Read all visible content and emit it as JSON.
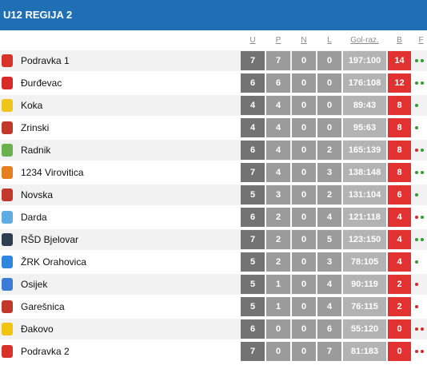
{
  "title": "U12 REGIJA 2",
  "columns": {
    "u": "U",
    "p": "P",
    "n": "N",
    "l": "L",
    "gol": "Gol-raz.",
    "b": "B",
    "f": "F"
  },
  "colors": {
    "header": "#1f6fb4",
    "points": "#e23131",
    "win": "#2a9d2a",
    "loss": "#d62626"
  },
  "rows": [
    {
      "team": "Podravka 1",
      "u": "7",
      "p": "7",
      "n": "0",
      "l": "0",
      "gol": "197:100",
      "b": "14",
      "form": [
        "w",
        "w"
      ],
      "logo": "#d8322b"
    },
    {
      "team": "Đurđevac",
      "u": "6",
      "p": "6",
      "n": "0",
      "l": "0",
      "gol": "176:108",
      "b": "12",
      "form": [
        "w",
        "w"
      ],
      "logo": "#d82a2a"
    },
    {
      "team": "Koka",
      "u": "4",
      "p": "4",
      "n": "0",
      "l": "0",
      "gol": "89:43",
      "b": "8",
      "form": [
        "w"
      ],
      "logo": "#f0c419"
    },
    {
      "team": "Zrinski",
      "u": "4",
      "p": "4",
      "n": "0",
      "l": "0",
      "gol": "95:63",
      "b": "8",
      "form": [
        "w"
      ],
      "logo": "#c0392b"
    },
    {
      "team": "Radnik",
      "u": "6",
      "p": "4",
      "n": "0",
      "l": "2",
      "gol": "165:139",
      "b": "8",
      "form": [
        "l",
        "w"
      ],
      "logo": "#6ab04c"
    },
    {
      "team": "1234 Virovitica",
      "u": "7",
      "p": "4",
      "n": "0",
      "l": "3",
      "gol": "138:148",
      "b": "8",
      "form": [
        "w",
        "w"
      ],
      "logo": "#e67e22"
    },
    {
      "team": "Novska",
      "u": "5",
      "p": "3",
      "n": "0",
      "l": "2",
      "gol": "131:104",
      "b": "6",
      "form": [
        "w"
      ],
      "logo": "#c0392b"
    },
    {
      "team": "Darda",
      "u": "6",
      "p": "2",
      "n": "0",
      "l": "4",
      "gol": "121:118",
      "b": "4",
      "form": [
        "l",
        "w"
      ],
      "logo": "#5dade2"
    },
    {
      "team": "RŠD Bjelovar",
      "u": "7",
      "p": "2",
      "n": "0",
      "l": "5",
      "gol": "123:150",
      "b": "4",
      "form": [
        "w",
        "w"
      ],
      "logo": "#2c3e50"
    },
    {
      "team": "ŽRK Orahovica",
      "u": "5",
      "p": "2",
      "n": "0",
      "l": "3",
      "gol": "78:105",
      "b": "4",
      "form": [
        "w"
      ],
      "logo": "#2e86de"
    },
    {
      "team": "Osijek",
      "u": "5",
      "p": "1",
      "n": "0",
      "l": "4",
      "gol": "90:119",
      "b": "2",
      "form": [
        "l"
      ],
      "logo": "#3a7bd5"
    },
    {
      "team": "Garešnica",
      "u": "5",
      "p": "1",
      "n": "0",
      "l": "4",
      "gol": "76:115",
      "b": "2",
      "form": [
        "l"
      ],
      "logo": "#c0392b"
    },
    {
      "team": "Đakovo",
      "u": "6",
      "p": "0",
      "n": "0",
      "l": "6",
      "gol": "55:120",
      "b": "0",
      "form": [
        "l",
        "l"
      ],
      "logo": "#f1c40f"
    },
    {
      "team": "Podravka 2",
      "u": "7",
      "p": "0",
      "n": "0",
      "l": "7",
      "gol": "81:183",
      "b": "0",
      "form": [
        "l",
        "l"
      ],
      "logo": "#d8322b"
    }
  ]
}
